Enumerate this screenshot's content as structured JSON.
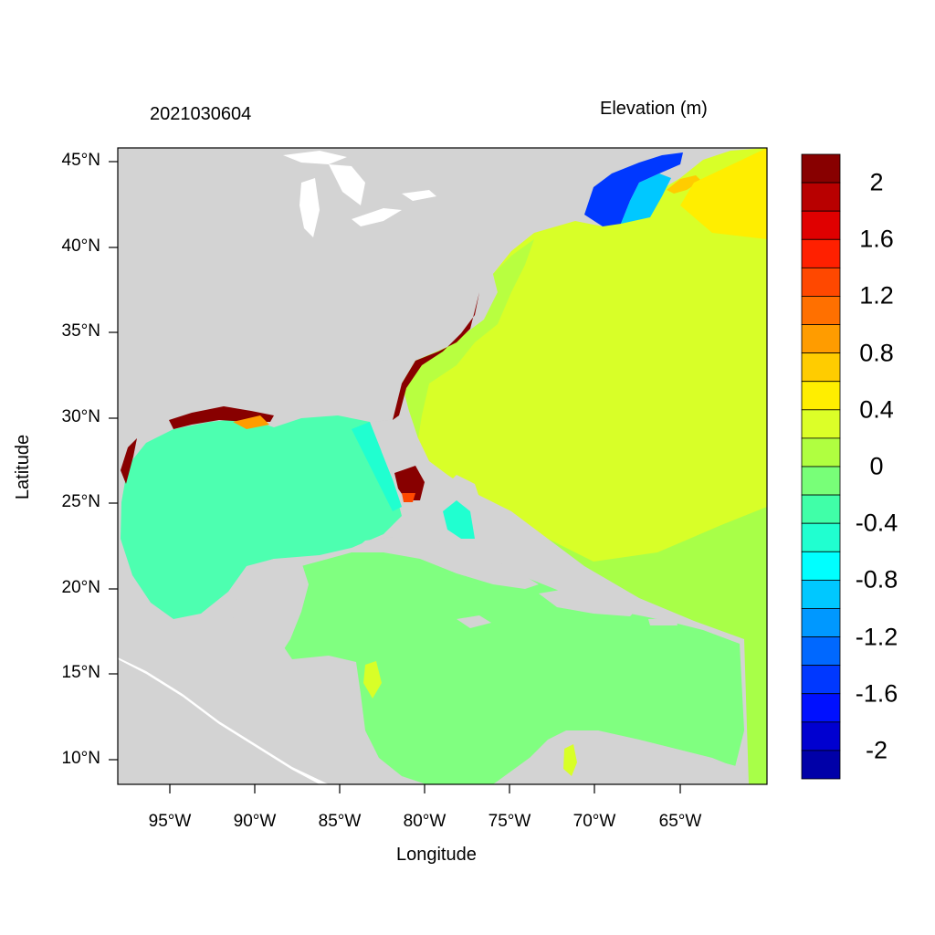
{
  "header": {
    "timestamp": "2021030604",
    "variable": "Elevation (m)"
  },
  "axes": {
    "xlabel": "Longitude",
    "ylabel": "Latitude",
    "lon_ticks": [
      "95°W",
      "90°W",
      "85°W",
      "80°W",
      "75°W",
      "70°W",
      "65°W"
    ],
    "lon_values": [
      -95,
      -90,
      -85,
      -80,
      -75,
      -70,
      -65
    ],
    "lat_ticks": [
      "45°N",
      "40°N",
      "35°N",
      "30°N",
      "25°N",
      "20°N",
      "15°N",
      "10°N"
    ],
    "lat_values": [
      45,
      40,
      35,
      30,
      25,
      20,
      15,
      10
    ],
    "lon_range": [
      -98,
      -60
    ],
    "lat_range": [
      8.5,
      46
    ]
  },
  "colorbar": {
    "labels": [
      "2",
      "1.6",
      "1.2",
      "0.8",
      "0.4",
      "0",
      "-0.4",
      "-0.8",
      "-1.2",
      "-1.6",
      "-2"
    ],
    "label_values": [
      2,
      1.6,
      1.2,
      0.8,
      0.4,
      0,
      -0.4,
      -0.8,
      -1.2,
      -1.6,
      -2
    ],
    "colors_top_to_bottom": [
      "#880000",
      "#b80000",
      "#e00000",
      "#ff2000",
      "#ff4800",
      "#ff7000",
      "#ff9c00",
      "#ffcc00",
      "#ffee00",
      "#dcff28",
      "#b0ff40",
      "#78ff78",
      "#40ffa8",
      "#20ffd0",
      "#00ffff",
      "#00c8ff",
      "#0098ff",
      "#0068ff",
      "#0038ff",
      "#0010ff",
      "#0000d0",
      "#0000a8"
    ]
  },
  "map_colors": {
    "land": "#d3d3d3",
    "lakes": "#ffffff",
    "gulf_of_mexico": "#4dffb0",
    "caribbean": "#80ff80",
    "atlantic": "#d8ff28",
    "atlantic_south": "#a8ff48",
    "gulf_of_maine": "#0038ff",
    "high_surge": "#880000"
  }
}
